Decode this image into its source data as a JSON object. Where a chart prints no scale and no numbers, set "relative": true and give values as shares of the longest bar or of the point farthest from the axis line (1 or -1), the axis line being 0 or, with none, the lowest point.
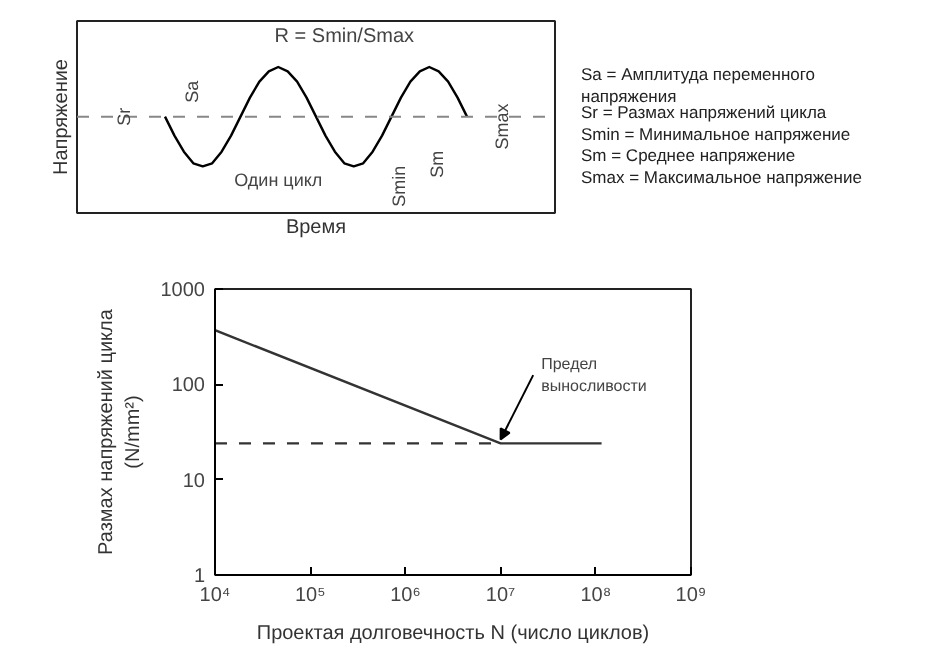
{
  "chart_data": [
    {
      "type": "line",
      "relative": true,
      "title": "R = Smin/Smax",
      "xlabel": "Время",
      "ylabel": "Напряжение",
      "categories": [
        null,
        null,
        null,
        null,
        null,
        null,
        null,
        null,
        null,
        null,
        null,
        null,
        null,
        null,
        null,
        null,
        null,
        null,
        null,
        null,
        null,
        null,
        null,
        null,
        null,
        null,
        null,
        null,
        null,
        null,
        null,
        null,
        null
      ],
      "series": [
        {
          "color": "#000000",
          "values": [
            0.66,
            0.53,
            0.42,
            0.34,
            0.32,
            0.34,
            0.42,
            0.53,
            0.66,
            0.79,
            0.9,
            0.97,
            1,
            0.97,
            0.9,
            0.79,
            0.66,
            0.53,
            0.42,
            0.34,
            0.32,
            0.34,
            0.42,
            0.53,
            0.66,
            0.79,
            0.9,
            0.97,
            1,
            0.97,
            0.9,
            0.79,
            0.66
          ]
        }
      ],
      "ref_lines": [
        {
          "axis": "y",
          "value": 0.66,
          "line_style": "dashed",
          "color": "#888888"
        }
      ],
      "annotations": [
        "Sr",
        "Sa",
        "Один цикл",
        "Smin",
        "Sm",
        "Smax",
        "Sa = Амплитуда переменного напряжения",
        "Sr = Размах напряжений цикла",
        "Smin = Минимальное напряжение",
        "Sm = Среднее напряжение",
        "Smax = Максимальное напряжение"
      ],
      "grid": false
    },
    {
      "type": "line",
      "log": "xy",
      "xlabel": "Проектая долговечность N (число циклов)",
      "ylabel": "Размах напряжений цикла\n(N/mm²)",
      "xlim": [
        10000,
        1000000000
      ],
      "ylim": [
        1,
        1000
      ],
      "xticks": [
        {
          "value": 10000,
          "label": "10⁴"
        },
        {
          "value": 100000,
          "label": "10⁵"
        },
        {
          "value": 1000000,
          "label": "10⁶"
        },
        {
          "value": 10000000,
          "label": "10⁷"
        },
        {
          "value": 100000000,
          "label": "10⁸"
        },
        {
          "value": 1000000000,
          "label": "10⁹"
        }
      ],
      "yticks": [
        1,
        10,
        100,
        1000
      ],
      "series": [
        {
          "color": "#333333",
          "x": [
            10000,
            10000000,
            115000000
          ],
          "values": [
            370,
            24,
            24
          ],
          "line_style": "solid"
        },
        {
          "color": "#333333",
          "x": [
            10000,
            10000000
          ],
          "values": [
            24,
            24
          ],
          "line_style": "dashed"
        }
      ],
      "annotations": [
        {
          "text": "Предел выносливости",
          "x": 10000000,
          "y": 24
        }
      ],
      "grid": false,
      "marker": "none"
    }
  ]
}
